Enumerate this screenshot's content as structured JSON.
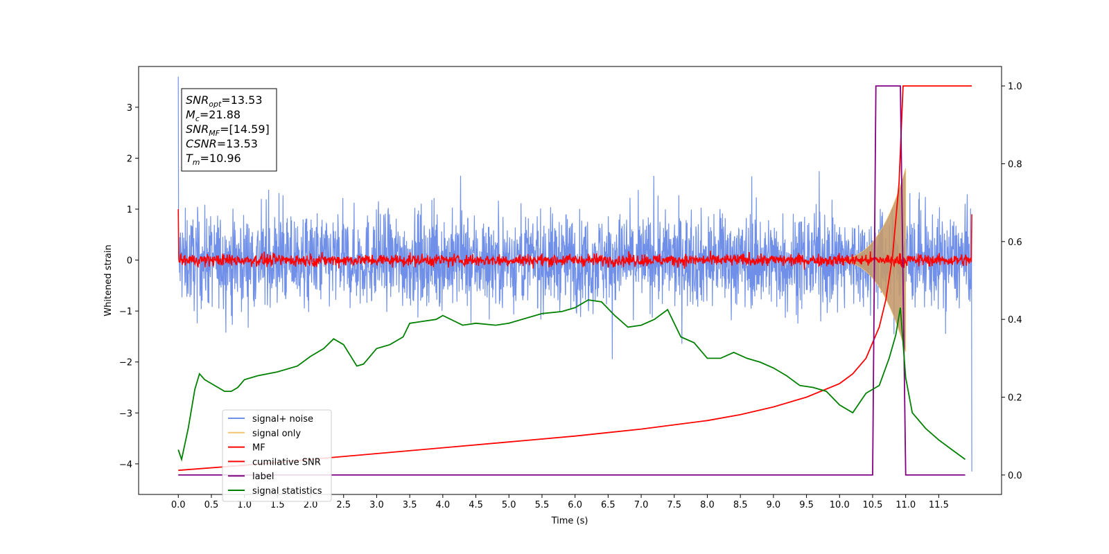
{
  "chart_data": {
    "type": "line",
    "xlabel": "Time (s)",
    "ylabel": "Whitened strain",
    "xlim": [
      -0.6,
      12.45
    ],
    "ylim_left": [
      -4.6,
      3.8
    ],
    "ylim_right": [
      -0.05,
      1.05
    ],
    "x_ticks": [
      "0.0",
      "0.5",
      "1.0",
      "1.5",
      "2.0",
      "2.5",
      "3.0",
      "3.5",
      "4.0",
      "4.5",
      "5.0",
      "5.5",
      "6.0",
      "6.5",
      "7.0",
      "7.5",
      "8.0",
      "8.5",
      "9.0",
      "9.5",
      "10.0",
      "10.5",
      "11.0",
      "11.5"
    ],
    "y_ticks_left": [
      "3",
      "2",
      "1",
      "0",
      "−1",
      "−2",
      "−3",
      "−4"
    ],
    "y_ticks_right": [
      "1.0",
      "0.8",
      "0.6",
      "0.4",
      "0.2",
      "0.0"
    ],
    "grid": false,
    "legend_position": "lower-left",
    "annotation": {
      "lines": [
        {
          "sym": "SNR",
          "sub": "opt",
          "val": "=13.53"
        },
        {
          "sym": "M",
          "sub": "c",
          "val": "=21.88"
        },
        {
          "sym": "SNR",
          "sub": "MF",
          "val": "=[14.59]"
        },
        {
          "sym": "CSNR",
          "sub": "",
          "val": "=13.53"
        },
        {
          "sym": "T",
          "sub": "m",
          "val": "=10.96"
        }
      ]
    },
    "series": [
      {
        "name": "signal+ noise",
        "color": "#6f8fe8",
        "axis": "left",
        "kind": "noise",
        "x_range": [
          0,
          12.0
        ],
        "spread": 0.45,
        "peak_spread": 1.0
      },
      {
        "name": "signal only",
        "color": "#f5c26b",
        "axis": "left",
        "kind": "chirp_envelope",
        "x_range": [
          9.8,
          11.0
        ],
        "amplitude_max": 1.8
      },
      {
        "name": "MF",
        "color": "#ff0000",
        "axis": "left",
        "kind": "noise",
        "x_range": [
          0,
          12.0
        ],
        "spread": 0.06,
        "start_value": 1.0,
        "end_value": 0.9
      },
      {
        "name": "cumilative SNR",
        "color": "#ff0000",
        "axis": "right",
        "x": [
          0.0,
          1.0,
          2.0,
          3.0,
          4.0,
          5.0,
          6.0,
          7.0,
          8.0,
          8.5,
          9.0,
          9.5,
          10.0,
          10.2,
          10.4,
          10.6,
          10.7,
          10.8,
          10.9,
          10.96,
          11.0,
          12.0
        ],
        "y": [
          0.012,
          0.025,
          0.04,
          0.055,
          0.07,
          0.085,
          0.1,
          0.118,
          0.14,
          0.155,
          0.175,
          0.2,
          0.235,
          0.26,
          0.3,
          0.38,
          0.45,
          0.56,
          0.75,
          1.0,
          1.0,
          1.0
        ]
      },
      {
        "name": "label",
        "color": "#800080",
        "axis": "right",
        "x": [
          0.0,
          10.5,
          10.55,
          10.92,
          11.0,
          11.9
        ],
        "y": [
          0.0,
          0.0,
          1.0,
          1.0,
          0.0,
          0.0
        ]
      },
      {
        "name": "signal statistics",
        "color": "#008000",
        "axis": "right",
        "x": [
          0.0,
          0.05,
          0.15,
          0.25,
          0.32,
          0.4,
          0.5,
          0.6,
          0.7,
          0.8,
          0.9,
          1.0,
          1.2,
          1.5,
          1.8,
          2.0,
          2.2,
          2.35,
          2.5,
          2.7,
          2.8,
          3.0,
          3.2,
          3.4,
          3.5,
          3.7,
          3.9,
          4.0,
          4.3,
          4.5,
          4.8,
          5.0,
          5.3,
          5.5,
          5.8,
          6.0,
          6.2,
          6.4,
          6.6,
          6.8,
          7.0,
          7.2,
          7.4,
          7.6,
          7.8,
          8.0,
          8.2,
          8.4,
          8.6,
          8.8,
          9.0,
          9.2,
          9.4,
          9.6,
          9.8,
          10.0,
          10.2,
          10.4,
          10.6,
          10.75,
          10.85,
          10.92,
          11.0,
          11.1,
          11.3,
          11.5,
          11.7,
          11.9
        ],
        "y": [
          0.065,
          0.04,
          0.12,
          0.22,
          0.26,
          0.245,
          0.235,
          0.225,
          0.215,
          0.215,
          0.225,
          0.245,
          0.255,
          0.265,
          0.28,
          0.305,
          0.325,
          0.35,
          0.335,
          0.28,
          0.285,
          0.325,
          0.335,
          0.355,
          0.39,
          0.395,
          0.4,
          0.41,
          0.385,
          0.39,
          0.385,
          0.39,
          0.405,
          0.415,
          0.42,
          0.43,
          0.45,
          0.445,
          0.41,
          0.38,
          0.385,
          0.4,
          0.425,
          0.355,
          0.34,
          0.3,
          0.3,
          0.315,
          0.3,
          0.29,
          0.275,
          0.255,
          0.23,
          0.225,
          0.215,
          0.18,
          0.16,
          0.21,
          0.23,
          0.3,
          0.36,
          0.43,
          0.25,
          0.16,
          0.12,
          0.09,
          0.065,
          0.04
        ]
      }
    ]
  }
}
